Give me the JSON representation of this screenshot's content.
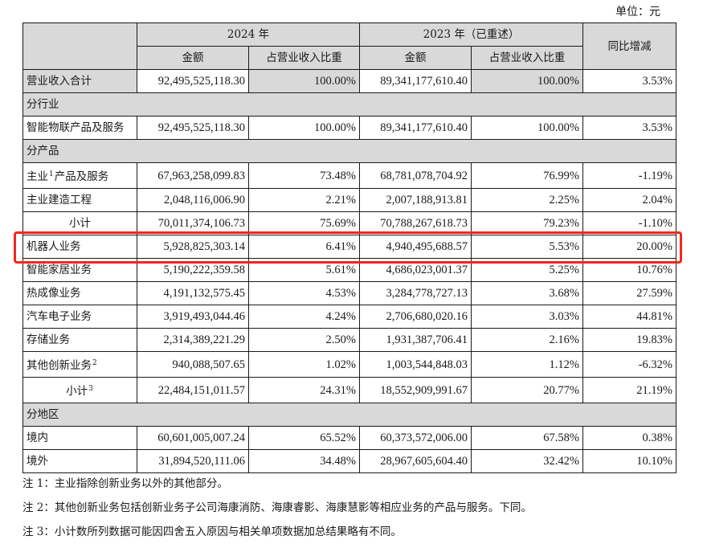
{
  "unit_label": "单位：元",
  "header": {
    "year_2024": "2024 年",
    "year_2023": "2023 年（已重述）",
    "amount": "金额",
    "share": "占营业收入比重",
    "yoy": "同比增减"
  },
  "rows": [
    {
      "type": "total",
      "label": "营业收入合计",
      "amt_2024": "92,495,525,118.30",
      "pct_2024": "100.00%",
      "amt_2023": "89,341,177,610.40",
      "pct_2023": "100.00%",
      "yoy": "3.53%"
    },
    {
      "type": "section",
      "label": "分行业"
    },
    {
      "type": "data",
      "label": "智能物联产品及服务",
      "amt_2024": "92,495,525,118.30",
      "pct_2024": "100.00%",
      "amt_2023": "89,341,177,610.40",
      "pct_2023": "100.00%",
      "yoy": "3.53%"
    },
    {
      "type": "section",
      "label": "分产品"
    },
    {
      "type": "data",
      "label": "主业",
      "sup": "1",
      "label_suffix": "产品及服务",
      "amt_2024": "67,963,258,099.83",
      "pct_2024": "73.48%",
      "amt_2023": "68,781,078,704.92",
      "pct_2023": "76.99%",
      "yoy": "-1.19%"
    },
    {
      "type": "data",
      "label": "主业建造工程",
      "amt_2024": "2,048,116,006.90",
      "pct_2024": "2.21%",
      "amt_2023": "2,007,188,913.81",
      "pct_2023": "2.25%",
      "yoy": "2.04%"
    },
    {
      "type": "subtotal",
      "label": "小计",
      "amt_2024": "70,011,374,106.73",
      "pct_2024": "75.69%",
      "amt_2023": "70,788,267,618.73",
      "pct_2023": "79.23%",
      "yoy": "-1.10%"
    },
    {
      "type": "data",
      "label": "机器人业务",
      "highlighted": true,
      "amt_2024": "5,928,825,303.14",
      "pct_2024": "6.41%",
      "amt_2023": "4,940,495,688.57",
      "pct_2023": "5.53%",
      "yoy": "20.00%"
    },
    {
      "type": "data",
      "label": "智能家居业务",
      "amt_2024": "5,190,222,359.58",
      "pct_2024": "5.61%",
      "amt_2023": "4,686,023,001.37",
      "pct_2023": "5.25%",
      "yoy": "10.76%"
    },
    {
      "type": "data",
      "label": "热成像业务",
      "amt_2024": "4,191,132,575.45",
      "pct_2024": "4.53%",
      "amt_2023": "3,284,778,727.13",
      "pct_2023": "3.68%",
      "yoy": "27.59%"
    },
    {
      "type": "data",
      "label": "汽车电子业务",
      "amt_2024": "3,919,493,044.46",
      "pct_2024": "4.24%",
      "amt_2023": "2,706,680,020.16",
      "pct_2023": "3.03%",
      "yoy": "44.81%"
    },
    {
      "type": "data",
      "label": "存储业务",
      "amt_2024": "2,314,389,221.29",
      "pct_2024": "2.50%",
      "amt_2023": "1,931,387,706.41",
      "pct_2023": "2.16%",
      "yoy": "19.83%"
    },
    {
      "type": "data",
      "label": "其他创新业务",
      "sup": "2",
      "amt_2024": "940,088,507.65",
      "pct_2024": "1.02%",
      "amt_2023": "1,003,544,848.03",
      "pct_2023": "1.12%",
      "yoy": "-6.32%"
    },
    {
      "type": "subtotal",
      "label": "小计",
      "sup": "3",
      "amt_2024": "22,484,151,011.57",
      "pct_2024": "24.31%",
      "amt_2023": "18,552,909,991.67",
      "pct_2023": "20.77%",
      "yoy": "21.19%"
    },
    {
      "type": "section",
      "label": "分地区"
    },
    {
      "type": "data",
      "label": "境内",
      "amt_2024": "60,601,005,007.24",
      "pct_2024": "65.52%",
      "amt_2023": "60,373,572,006.00",
      "pct_2023": "67.58%",
      "yoy": "0.38%"
    },
    {
      "type": "data",
      "label": "境外",
      "amt_2024": "31,894,520,111.06",
      "pct_2024": "34.48%",
      "amt_2023": "28,967,605,604.40",
      "pct_2023": "32.42%",
      "yoy": "10.10%"
    }
  ],
  "notes": [
    "注 1：主业指除创新业务以外的其他部分。",
    "注 2：其他创新业务包括创新业务子公司海康消防、海康睿影、海康慧影等相应业务的产品与服务。下同。",
    "注 3：小计数所列数据可能因四舍五入原因与相关单项数据加总结果略有不同。"
  ],
  "colors": {
    "header_bg": "#d9d9d9",
    "highlight_border": "#f0281e",
    "border": "#1a1a1a"
  }
}
